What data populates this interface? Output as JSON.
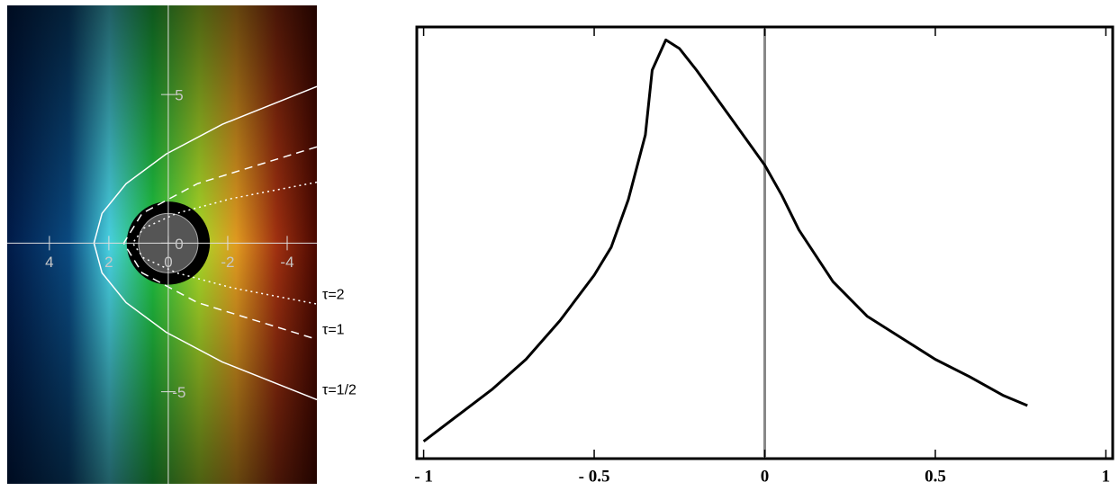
{
  "chart_data": [
    {
      "type": "contour",
      "xlim": [
        5.42,
        -5
      ],
      "ylim": [
        -8.1,
        8
      ],
      "xticks": [
        4,
        2,
        0,
        -2,
        -4
      ],
      "yticks": [
        5,
        0,
        -5
      ],
      "series": [
        {
          "name": "τ=2",
          "color": "#ffffff",
          "dash": "dotted",
          "x": [
            -5,
            -2.13,
            -0.28,
            0.83,
            1.2,
            0.83,
            -0.28,
            -2.13,
            -5
          ],
          "y": [
            2.05,
            1.5,
            1,
            0.5,
            0,
            -0.5,
            -1,
            -1.5,
            -2.05
          ]
        },
        {
          "name": "τ=1",
          "color": "#ffffff",
          "dash": "dashed",
          "x": [
            -5,
            -0.98,
            0.88,
            1.5,
            0.88,
            -0.98,
            -5
          ],
          "y": [
            3.24,
            2,
            1,
            0,
            -1,
            -2,
            -3.24
          ]
        },
        {
          "name": "τ=1/2",
          "color": "#ffffff",
          "dash": "solid",
          "x": [
            -5,
            -1.82,
            0.07,
            1.42,
            2.23,
            2.5,
            2.23,
            1.42,
            0.07,
            -1.82,
            -5
          ],
          "y": [
            5.27,
            4,
            3,
            2,
            1,
            0,
            -1,
            -2,
            -3,
            -4,
            -5.27
          ]
        }
      ]
    },
    {
      "type": "line",
      "xlim": [
        -1.02,
        1.02
      ],
      "ylim": [
        0,
        1
      ],
      "xticks": [
        {
          "value": -1,
          "label": "- 1"
        },
        {
          "value": -0.5,
          "label": "- 0.5"
        },
        0,
        0.5,
        1
      ],
      "vline": 0,
      "series": [
        {
          "color": "#000000",
          "x": [
            -1,
            -0.9,
            -0.8,
            -0.7,
            -0.6,
            -0.5,
            -0.45,
            -0.4,
            -0.35,
            -0.33,
            -0.29,
            -0.25,
            -0.2,
            -0.1,
            0,
            0.05,
            0.1,
            0.2,
            0.3,
            0.4,
            0.5,
            0.6,
            0.7,
            0.77
          ],
          "values": [
            0.04,
            0.1,
            0.16,
            0.23,
            0.32,
            0.425,
            0.49,
            0.6,
            0.75,
            0.9,
            0.97,
            0.95,
            0.9,
            0.79,
            0.68,
            0.61,
            0.53,
            0.41,
            0.33,
            0.28,
            0.23,
            0.19,
            0.146,
            0.123
          ]
        }
      ]
    }
  ]
}
